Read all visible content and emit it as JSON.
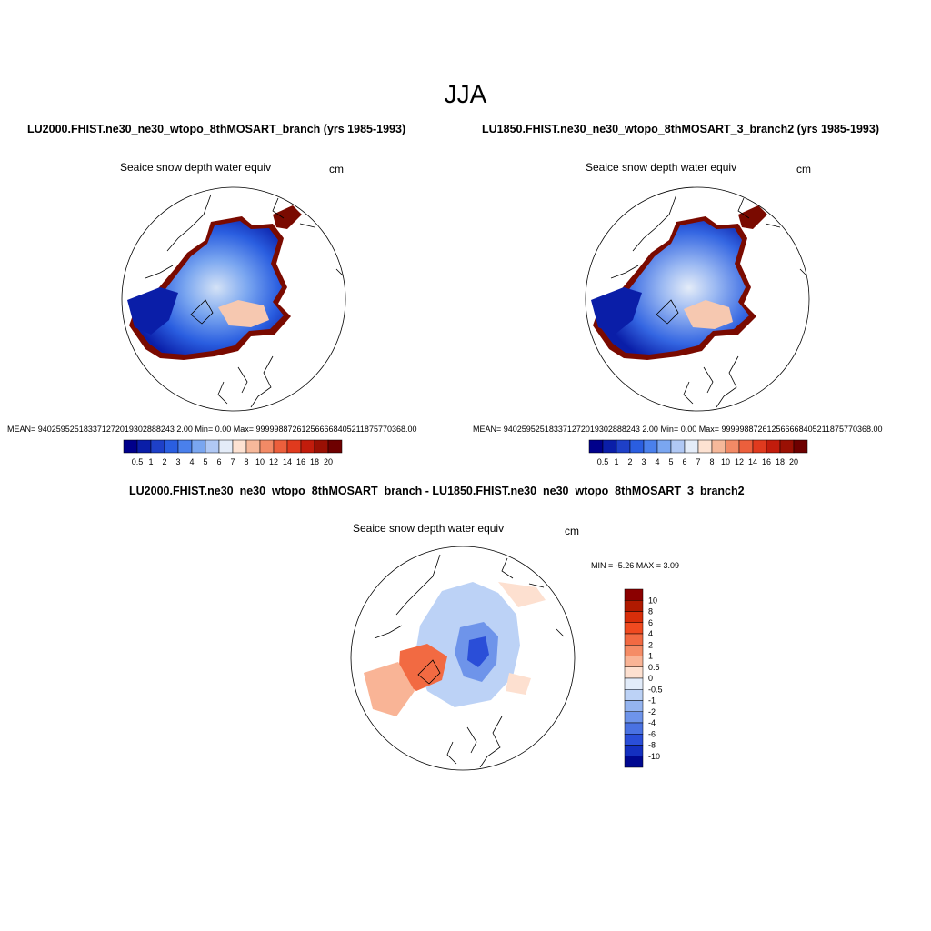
{
  "figure": {
    "title": "JJA"
  },
  "panels": [
    {
      "id": "left",
      "title": "LU2000.FHIST.ne30_ne30_wtopo_8thMOSART_branch (yrs 1985-1993)",
      "variable": "Seaice snow depth water equiv",
      "units": "cm",
      "stats": "MEAN= 940259525183371272019302888243 2.00  Min=   0.00  Max= 999998872612566668405211875770368.00"
    },
    {
      "id": "right",
      "title": "LU1850.FHIST.ne30_ne30_wtopo_8thMOSART_3_branch2 (yrs 1985-1993)",
      "variable": "Seaice snow depth water equiv",
      "units": "cm",
      "stats": "MEAN= 940259525183371272019302888243 2.00  Min=   0.00  Max= 999998872612566668405211875770368.00"
    },
    {
      "id": "diff",
      "title": "LU2000.FHIST.ne30_ne30_wtopo_8thMOSART_branch - LU1850.FHIST.ne30_ne30_wtopo_8thMOSART_3_branch2",
      "variable": "Seaice snow depth water equiv",
      "units": "cm",
      "stats": "MIN =  -5.26 MAX =   3.09"
    }
  ],
  "colorbar_horizontal": {
    "labels": [
      "0.5",
      "1",
      "2",
      "3",
      "4",
      "5",
      "6",
      "7",
      "8",
      "10",
      "12",
      "14",
      "16",
      "18",
      "20"
    ],
    "colors": [
      "#00008b",
      "#0a1ea8",
      "#1e40c8",
      "#2a5ee0",
      "#4a80ec",
      "#7aa6f0",
      "#b0c8f4",
      "#e4ecf8",
      "#fde2d2",
      "#f6b89a",
      "#f28a66",
      "#ec5f3c",
      "#e03a1e",
      "#c21c0c",
      "#9a1004",
      "#6e0000"
    ]
  },
  "colorbar_vertical": {
    "labels": [
      "10",
      "8",
      "6",
      "4",
      "2",
      "1",
      "0.5",
      "0",
      "-0.5",
      "-1",
      "-2",
      "-4",
      "-6",
      "-8",
      "-10"
    ],
    "colors": [
      "#8b0000",
      "#b01a00",
      "#d82e0a",
      "#f04a20",
      "#f26a42",
      "#f58c66",
      "#f9b496",
      "#fde0d0",
      "#e2ecfa",
      "#bcd2f6",
      "#94b4f0",
      "#6e94ea",
      "#4a72e2",
      "#2a4ed8",
      "#1430c0",
      "#000890"
    ]
  }
}
